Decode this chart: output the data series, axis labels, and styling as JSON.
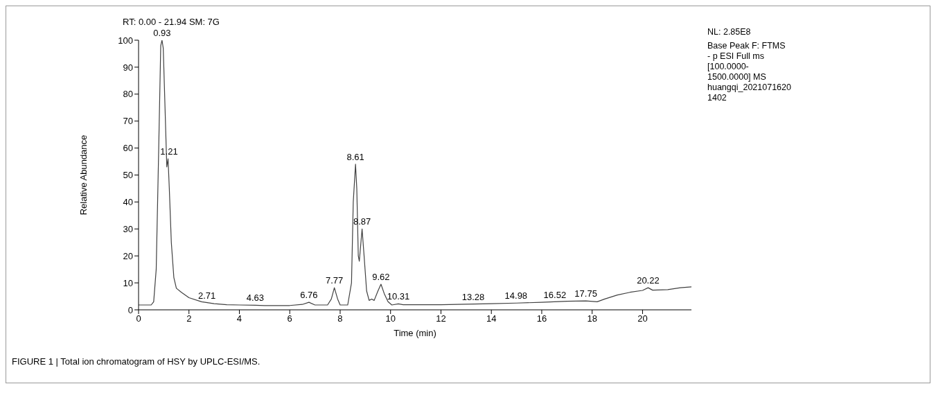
{
  "chart_data": {
    "type": "line",
    "xlabel": "Time (min)",
    "ylabel": "Relative Abundance",
    "x": [
      0,
      0.5,
      0.6,
      0.7,
      0.8,
      0.88,
      0.93,
      0.98,
      1.05,
      1.12,
      1.17,
      1.22,
      1.3,
      1.4,
      1.5,
      1.7,
      2.0,
      2.5,
      3.0,
      3.5,
      4.0,
      4.63,
      5,
      6.0,
      6.5,
      6.76,
      7.0,
      7.5,
      7.65,
      7.77,
      7.9,
      8.0,
      8.3,
      8.45,
      8.52,
      8.61,
      8.66,
      8.72,
      8.76,
      8.87,
      8.95,
      9.05,
      9.15,
      9.25,
      9.35,
      9.5,
      9.62,
      9.75,
      9.9,
      10.05,
      10.31,
      10.5,
      11,
      12,
      13,
      14,
      15,
      16,
      17,
      17.75,
      18.2,
      18.5,
      19,
      19.5,
      20,
      20.22,
      20.4,
      21,
      21.5,
      21.94
    ],
    "series": [
      {
        "color": "#404040",
        "values": [
          1.8,
          1.8,
          3,
          15,
          60,
          98,
          100,
          97,
          75,
          53,
          56,
          45,
          25,
          12,
          8,
          6.5,
          4.5,
          3,
          2.3,
          1.9,
          1.8,
          1.7,
          1.6,
          1.6,
          2,
          2.8,
          1.8,
          1.8,
          4,
          8.2,
          4,
          1.8,
          1.8,
          10,
          40,
          54,
          45,
          20,
          18,
          30,
          20,
          7,
          3.5,
          4,
          3.5,
          7,
          9.5,
          6,
          3,
          1.8,
          2.2,
          1.9,
          1.9,
          1.9,
          2.1,
          2.3,
          2.5,
          2.8,
          3.2,
          3.3,
          3,
          4,
          5.5,
          6.5,
          7.2,
          8.2,
          7.3,
          7.5,
          8.2,
          8.5
        ]
      }
    ],
    "xlim": [
      0,
      21.94
    ],
    "xticks": [
      0,
      2,
      4,
      6,
      8,
      10,
      12,
      14,
      16,
      18,
      20
    ],
    "ylim": [
      0,
      100
    ],
    "yticks": [
      0,
      10,
      20,
      30,
      40,
      50,
      60,
      70,
      80,
      90,
      100
    ],
    "grid": false,
    "legend": false,
    "marker": "none",
    "line_style": "solid",
    "annotations": [
      "RT: 0.00 - 21.94   SM: 7G",
      "NL: 2.85E8",
      "Base Peak F: FTMS",
      "- p ESI Full ms",
      "[100.0000-",
      "1500.0000]  MS",
      "huangqi_2021071620",
      "1402",
      {
        "text": "0.93",
        "x": 0.93,
        "y": 100
      },
      {
        "text": "1.21",
        "x": 1.21,
        "y": 56
      },
      {
        "text": "2.71",
        "x": 2.71,
        "y": 2.6
      },
      {
        "text": "4.63",
        "x": 4.63,
        "y": 1.7
      },
      {
        "text": "6.76",
        "x": 6.76,
        "y": 2.8
      },
      {
        "text": "7.77",
        "x": 7.77,
        "y": 8.2
      },
      {
        "text": "8.61",
        "x": 8.61,
        "y": 54
      },
      {
        "text": "8.87",
        "x": 8.87,
        "y": 30
      },
      {
        "text": "9.62",
        "x": 9.62,
        "y": 9.5
      },
      {
        "text": "10.31",
        "x": 10.31,
        "y": 2.2
      },
      {
        "text": "13.28",
        "x": 13.28,
        "y": 2.1
      },
      {
        "text": "14.98",
        "x": 14.98,
        "y": 2.5
      },
      {
        "text": "16.52",
        "x": 16.52,
        "y": 2.9
      },
      {
        "text": "17.75",
        "x": 17.75,
        "y": 3.3
      },
      {
        "text": "20.22",
        "x": 20.22,
        "y": 8.2
      },
      "FIGURE 1 | Total ion chromatogram of HSY by UPLC-ESI/MS."
    ]
  }
}
